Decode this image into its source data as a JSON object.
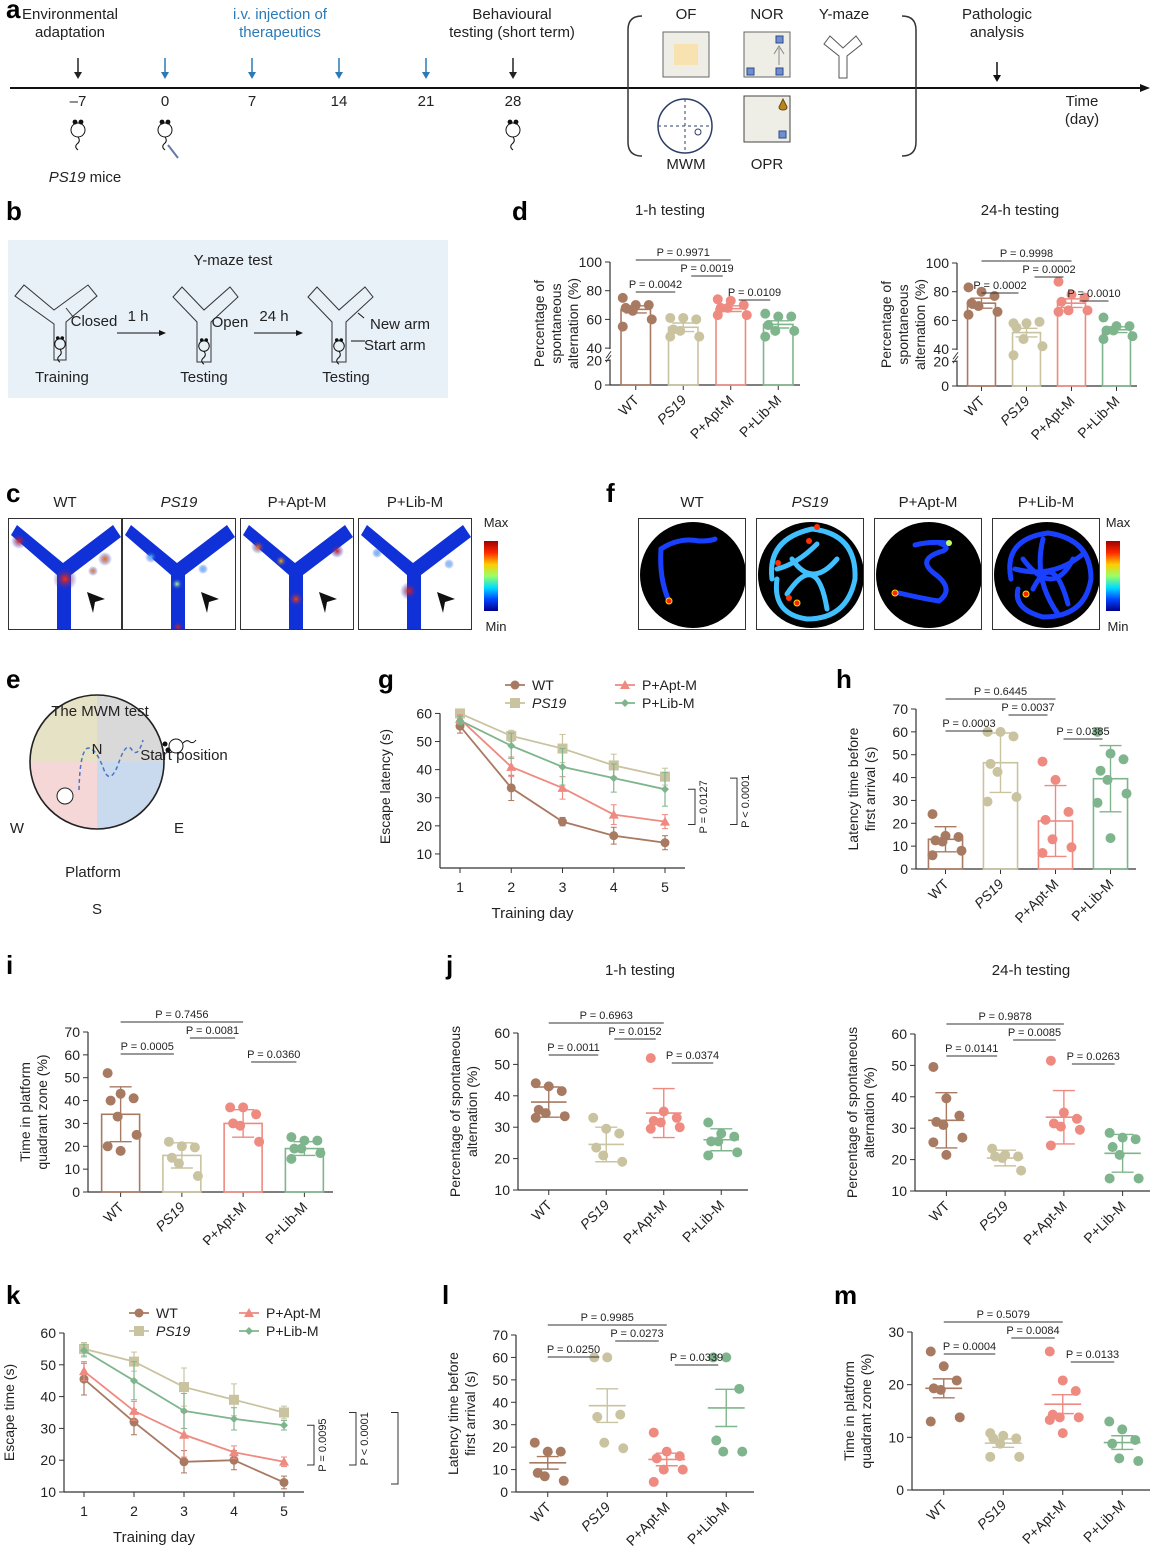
{
  "colors": {
    "WT": "#a87a62",
    "PS19": "#c9c3a0",
    "AptM": "#ee8a80",
    "LibM": "#7fb58d",
    "blue_arrow": "#2a7ab8",
    "black": "#222222",
    "box_bg": "#e8f0f8"
  },
  "panel_labels": {
    "a": "a",
    "b": "b",
    "c": "c",
    "d": "d",
    "e": "e",
    "f": "f",
    "g": "g",
    "h": "h",
    "i": "i",
    "j": "j",
    "k": "k",
    "l": "l",
    "m": "m"
  },
  "timeline": {
    "labels": {
      "adaptation": [
        "Environmental",
        "adaptation"
      ],
      "injection": [
        "i.v. injection of",
        "therapeutics"
      ],
      "behavioural": [
        "Behavioural",
        "testing (short term)"
      ],
      "pathologic": [
        "Pathologic",
        "analysis"
      ],
      "time_axis": [
        "Time",
        "(day)"
      ],
      "mice": "PS19",
      "mice_suffix": " mice"
    },
    "days": [
      {
        "label": "–7",
        "arrow": "black"
      },
      {
        "label": "0",
        "arrow": "blue"
      },
      {
        "label": "7",
        "arrow": "blue"
      },
      {
        "label": "14",
        "arrow": "blue"
      },
      {
        "label": "21",
        "arrow": "blue"
      },
      {
        "label": "28",
        "arrow": "black"
      }
    ],
    "tests": {
      "OF": "OF",
      "NOR": "NOR",
      "Ymaze": "Y-maze",
      "MWM": "MWM",
      "OPR": "OPR"
    }
  },
  "ymaze_box": {
    "title": "Y-maze test",
    "closed": "Closed",
    "open": "Open",
    "t1": "1 h",
    "t2": "24 h",
    "new_arm": "New arm",
    "start_arm": "Start arm",
    "stages": [
      "Training",
      "Testing",
      "Testing"
    ]
  },
  "heatmap_c": {
    "groups": [
      "WT",
      "PS19",
      "P+Apt-M",
      "P+Lib-M"
    ],
    "scale_max": "Max",
    "scale_min": "Min"
  },
  "heatmap_f": {
    "groups": [
      "WT",
      "PS19",
      "P+Apt-M",
      "P+Lib-M"
    ],
    "scale_max": "Max",
    "scale_min": "Min"
  },
  "mwm": {
    "title": "The MWM test",
    "N": "N",
    "S": "S",
    "E": "E",
    "W": "W",
    "start": "Start position",
    "platform": "Platform"
  },
  "chart_data": [
    {
      "id": "d1",
      "type": "bar",
      "title": "1-h testing",
      "ylabel": [
        "Percentage of",
        "spontaneous",
        "alternation (%)"
      ],
      "categories": [
        "WT",
        "PS19",
        "P+Apt-M",
        "P+Lib-M"
      ],
      "yticks": [
        0,
        20,
        40,
        60,
        80,
        100
      ],
      "ylim": [
        0,
        100
      ],
      "axis_break": [
        20,
        40
      ],
      "means": [
        67,
        54.5,
        67.5,
        56.5
      ],
      "sem": [
        2.5,
        3,
        2,
        2.5
      ],
      "points": [
        [
          75,
          70,
          70,
          68,
          66,
          60,
          55
        ],
        [
          61,
          61,
          60,
          53,
          52,
          48,
          48
        ],
        [
          74,
          73,
          70,
          68,
          68,
          63,
          63
        ],
        [
          64,
          62,
          62,
          56,
          52,
          52,
          48
        ]
      ],
      "pvalues": [
        {
          "from": 0,
          "to": 2,
          "label": "P = 0.9971"
        },
        {
          "from": 1,
          "to": 2,
          "label": "P = 0.0019"
        },
        {
          "from": 0,
          "to": 1,
          "label": "P = 0.0042"
        },
        {
          "from": 2,
          "to": 3,
          "label": "P = 0.0109"
        }
      ]
    },
    {
      "id": "d2",
      "type": "bar",
      "title": "24-h testing",
      "ylabel": [
        "Percentage of",
        "spontaneous",
        "alternation (%)"
      ],
      "categories": [
        "WT",
        "PS19",
        "P+Apt-M",
        "P+Lib-M"
      ],
      "yticks": [
        0,
        20,
        40,
        60,
        80,
        100
      ],
      "ylim": [
        0,
        100
      ],
      "axis_break": [
        20,
        40
      ],
      "means": [
        72,
        51.5,
        72,
        53.5
      ],
      "sem": [
        3.5,
        3,
        3,
        2
      ],
      "points": [
        [
          83,
          80,
          77,
          72,
          70,
          66,
          64
        ],
        [
          58,
          58,
          59,
          55,
          47,
          42,
          31
        ],
        [
          87,
          78,
          76,
          73,
          67,
          67,
          66
        ],
        [
          62,
          56,
          56,
          53,
          53,
          49,
          47
        ]
      ],
      "pvalues": [
        {
          "from": 0,
          "to": 2,
          "label": "P = 0.9998"
        },
        {
          "from": 1,
          "to": 2,
          "label": "P = 0.0002"
        },
        {
          "from": 0,
          "to": 1,
          "label": "P = 0.0002"
        },
        {
          "from": 2,
          "to": 3,
          "label": "P = 0.0010"
        }
      ]
    },
    {
      "id": "g",
      "type": "line",
      "xlabel": "Training day",
      "ylabel": "Escape latency (s)",
      "x": [
        1,
        2,
        3,
        4,
        5
      ],
      "yticks": [
        10,
        20,
        30,
        40,
        50,
        60
      ],
      "ylim": [
        5,
        63
      ],
      "series": [
        {
          "name": "WT",
          "key": "WT",
          "marker": "circle",
          "values": [
            55.5,
            33.5,
            21.5,
            16.5,
            14
          ],
          "err": [
            2.5,
            4.5,
            1.5,
            3,
            2.5
          ]
        },
        {
          "name": "PS19",
          "key": "PS19",
          "marker": "square",
          "values": [
            60,
            52,
            47.5,
            41.5,
            37.5
          ],
          "err": [
            1,
            2,
            5,
            4,
            3
          ]
        },
        {
          "name": "P+Apt-M",
          "key": "AptM",
          "marker": "triangle",
          "values": [
            58,
            41,
            33.5,
            24,
            21.5
          ],
          "err": [
            1.5,
            3.5,
            4,
            3.5,
            2.5
          ]
        },
        {
          "name": "P+Lib-M",
          "key": "LibM",
          "marker": "diamond",
          "values": [
            57.5,
            48.5,
            41,
            37,
            33
          ],
          "err": [
            1.5,
            4.5,
            6.5,
            5,
            6
          ]
        }
      ],
      "brackets": [
        {
          "label": "P = 0.0127",
          "y1": 33,
          "y2": 20.5
        },
        {
          "label": "P < 0.0001",
          "y1": 37,
          "y2": 20.5
        },
        {
          "label": "P < 0.0001",
          "y1": 37,
          "y2": 14
        }
      ]
    },
    {
      "id": "h",
      "type": "bar",
      "ylabel": [
        "Latency time before",
        "first arrival (s)"
      ],
      "categories": [
        "WT",
        "PS19",
        "P+Apt-M",
        "P+Lib-M"
      ],
      "yticks": [
        0,
        10,
        20,
        30,
        40,
        50,
        60,
        70
      ],
      "ylim": [
        0,
        70
      ],
      "means": [
        13,
        46.5,
        21,
        39.5
      ],
      "sd": [
        5.5,
        13,
        15.5,
        14.5
      ],
      "points": [
        [
          24,
          14.5,
          14,
          12.5,
          12,
          8,
          6
        ],
        [
          60,
          60,
          58,
          46,
          42.5,
          31.5,
          29.5
        ],
        [
          47,
          39,
          25,
          21.5,
          13,
          9.5,
          7
        ],
        [
          60,
          50.5,
          48,
          43,
          39,
          33,
          29,
          13.5
        ]
      ],
      "pvalues": [
        {
          "from": 0,
          "to": 2,
          "label": "P = 0.6445"
        },
        {
          "from": 0,
          "to": 1,
          "label": "P = 0.0003"
        },
        {
          "from": 1,
          "to": 2,
          "label": "P = 0.0037"
        },
        {
          "from": 2,
          "to": 3,
          "label": "P = 0.0385"
        }
      ]
    },
    {
      "id": "i",
      "type": "bar",
      "ylabel": [
        "Time in platform",
        "quadrant zone (%)"
      ],
      "categories": [
        "WT",
        "PS19",
        "P+Apt-M",
        "P+Lib-M"
      ],
      "yticks": [
        0,
        10,
        20,
        30,
        40,
        50,
        60,
        70
      ],
      "ylim": [
        0,
        70
      ],
      "means": [
        34,
        16,
        30,
        19
      ],
      "sd": [
        12,
        5.5,
        6,
        3
      ],
      "points": [
        [
          52,
          43,
          41,
          40,
          33,
          25,
          20,
          18
        ],
        [
          22,
          20,
          19.5,
          15,
          12.5,
          7
        ],
        [
          37,
          37,
          34,
          30,
          29,
          22
        ],
        [
          24,
          22.5,
          22.5,
          19,
          19,
          17,
          14.5
        ]
      ],
      "pvalues": [
        {
          "from": 0,
          "to": 2,
          "label": "P = 0.7456"
        },
        {
          "from": 0,
          "to": 1,
          "label": "P = 0.0005"
        },
        {
          "from": 2,
          "to": 3,
          "label": "P = 0.0360"
        },
        {
          "from": 1,
          "to": 2,
          "label": "P = 0.0081"
        }
      ]
    },
    {
      "id": "j1",
      "type": "scatter",
      "title": "1-h testing",
      "ylabel": [
        "Percentage of spontaneous",
        "alternation (%)"
      ],
      "categories": [
        "WT",
        "PS19",
        "P+Apt-M",
        "P+Lib-M"
      ],
      "yticks": [
        10,
        20,
        30,
        40,
        50,
        60
      ],
      "ylim": [
        10,
        60
      ],
      "means": [
        38,
        24.5,
        34.5,
        26
      ],
      "sd": [
        4.8,
        5.5,
        7.8,
        3.5
      ],
      "points": [
        [
          44,
          43,
          41.5,
          35.5,
          34.5,
          33.5,
          33
        ],
        [
          33,
          29.5,
          28,
          23.5,
          21,
          19
        ],
        [
          52,
          35,
          33,
          32,
          31.5,
          30,
          29.5
        ],
        [
          31.5,
          28,
          27,
          25.5,
          25.5,
          22,
          21
        ]
      ],
      "pvalues": [
        {
          "from": 0,
          "to": 2,
          "label": "P = 0.6963"
        },
        {
          "from": 1,
          "to": 2,
          "label": "P = 0.0152"
        },
        {
          "from": 2,
          "to": 3,
          "label": "P = 0.0374"
        },
        {
          "from": 0,
          "to": 1,
          "label": "P = 0.0011"
        }
      ]
    },
    {
      "id": "j2",
      "type": "scatter",
      "title": "24-h testing",
      "ylabel": [
        "Percentage of spontaneous",
        "alternation (%)"
      ],
      "categories": [
        "WT",
        "PS19",
        "P+Apt-M",
        "P+Lib-M"
      ],
      "yticks": [
        10,
        20,
        30,
        40,
        50,
        60
      ],
      "ylim": [
        10,
        60
      ],
      "means": [
        32.5,
        20.5,
        33.5,
        22
      ],
      "sd": [
        8.8,
        2.5,
        8.5,
        6
      ],
      "points": [
        [
          49.5,
          39.5,
          34,
          32,
          31,
          27,
          25.5,
          21.5
        ],
        [
          23.5,
          21.5,
          21,
          21,
          20.5,
          16.5
        ],
        [
          51.5,
          35,
          33,
          31.5,
          30.5,
          29.5,
          24.5
        ],
        [
          28.5,
          27,
          26.5,
          24,
          21.5,
          14,
          14
        ]
      ],
      "pvalues": [
        {
          "from": 0,
          "to": 2,
          "label": "P = 0.9878"
        },
        {
          "from": 1,
          "to": 2,
          "label": "P = 0.0085"
        },
        {
          "from": 0,
          "to": 1,
          "label": "P = 0.0141"
        },
        {
          "from": 2,
          "to": 3,
          "label": "P = 0.0263"
        }
      ]
    },
    {
      "id": "k",
      "type": "line",
      "xlabel": "Training day",
      "ylabel": "Escape time (s)",
      "x": [
        1,
        2,
        3,
        4,
        5
      ],
      "yticks": [
        10,
        20,
        30,
        40,
        50,
        60
      ],
      "ylim": [
        10,
        60
      ],
      "series": [
        {
          "name": "WT",
          "key": "WT",
          "marker": "circle",
          "values": [
            45.5,
            32,
            19.5,
            20,
            13
          ],
          "err": [
            5,
            4,
            3.5,
            3,
            2
          ]
        },
        {
          "name": "PS19",
          "key": "PS19",
          "marker": "square",
          "values": [
            55,
            51,
            43,
            39,
            35
          ],
          "err": [
            2,
            3,
            6,
            5,
            2
          ]
        },
        {
          "name": "P+Apt-M",
          "key": "AptM",
          "marker": "triangle",
          "values": [
            48,
            35.5,
            28,
            22.5,
            19.5
          ],
          "err": [
            3,
            3,
            7,
            2,
            1.5
          ]
        },
        {
          "name": "P+Lib-M",
          "key": "LibM",
          "marker": "diamond",
          "values": [
            54.5,
            45,
            35.5,
            33,
            31
          ],
          "err": [
            2,
            6,
            5.5,
            3.5,
            1.5
          ]
        }
      ],
      "brackets": [
        {
          "label": "P = 0.0095",
          "y1": 31,
          "y2": 18.5
        },
        {
          "label": "P < 0.0001",
          "y1": 35,
          "y2": 18.5
        },
        {
          "label": "P < 0.0001",
          "y1": 35,
          "y2": 12.5
        }
      ]
    },
    {
      "id": "l",
      "type": "scatter",
      "ylabel": [
        "Latency time before",
        "first arrival (s)"
      ],
      "categories": [
        "WT",
        "PS19",
        "P+Apt-M",
        "P+Lib-M"
      ],
      "yticks": [
        0,
        10,
        20,
        30,
        40,
        50,
        60,
        70
      ],
      "ylim": [
        0,
        70
      ],
      "means": [
        13,
        38.5,
        14.5,
        37.5
      ],
      "sem": [
        2.8,
        7.5,
        2.8,
        8.3
      ],
      "points": [
        [
          22,
          18,
          18,
          8.5,
          7,
          5
        ],
        [
          60,
          60,
          34.5,
          33.5,
          22,
          19.5
        ],
        [
          26.5,
          18,
          16,
          15,
          10,
          10,
          4.5
        ],
        [
          60,
          60,
          46,
          23,
          18,
          18
        ]
      ],
      "pvalues": [
        {
          "from": 0,
          "to": 2,
          "label": "P = 0.9985"
        },
        {
          "from": 0,
          "to": 1,
          "label": "P = 0.0250"
        },
        {
          "from": 1,
          "to": 2,
          "label": "P = 0.0273"
        },
        {
          "from": 2,
          "to": 3,
          "label": "P = 0.0339"
        }
      ]
    },
    {
      "id": "m",
      "type": "scatter",
      "ylabel": [
        "Time in platform",
        "quadrant zone (%)"
      ],
      "categories": [
        "WT",
        "PS19",
        "P+Apt-M",
        "P+Lib-M"
      ],
      "yticks": [
        0,
        10,
        20,
        30
      ],
      "ylim": [
        0,
        30
      ],
      "means": [
        19.3,
        8.9,
        16.3,
        9
      ],
      "sem": [
        1.8,
        0.8,
        1.8,
        1.3
      ],
      "points": [
        [
          26.3,
          23.5,
          20.8,
          19.3,
          19,
          13.8,
          13
        ],
        [
          10.8,
          10.3,
          9.8,
          9.8,
          8.8,
          6.3,
          6.3
        ],
        [
          26.3,
          20.8,
          18.8,
          14.3,
          13.8,
          13.8,
          13.3,
          10.8
        ],
        [
          13,
          11.5,
          9.5,
          8.8,
          6,
          5.5
        ]
      ],
      "pvalues": [
        {
          "from": 0,
          "to": 2,
          "label": "P = 0.5079"
        },
        {
          "from": 1,
          "to": 2,
          "label": "P = 0.0084"
        },
        {
          "from": 0,
          "to": 1,
          "label": "P = 0.0004"
        },
        {
          "from": 2,
          "to": 3,
          "label": "P = 0.0133"
        }
      ]
    }
  ]
}
